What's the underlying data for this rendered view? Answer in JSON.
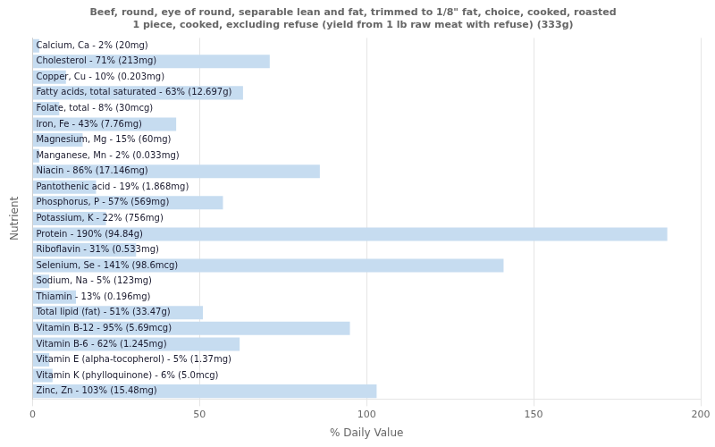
{
  "chart_data": {
    "type": "bar",
    "orientation": "horizontal",
    "title": "Beef, round, eye of round, separable lean and fat, trimmed to 1/8\" fat, choice, cooked, roasted\n1 piece, cooked, excluding refuse (yield from 1 lb raw meat with refuse) (333g)",
    "x_label": "% Daily Value",
    "y_label": "Nutrient",
    "categories": [
      "Calcium, Ca - 2% (20mg)",
      "Cholesterol - 71% (213mg)",
      "Copper, Cu - 10% (0.203mg)",
      "Fatty acids, total saturated - 63% (12.697g)",
      "Folate, total - 8% (30mcg)",
      "Iron, Fe - 43% (7.76mg)",
      "Magnesium, Mg - 15% (60mg)",
      "Manganese, Mn - 2% (0.033mg)",
      "Niacin - 86% (17.146mg)",
      "Pantothenic acid - 19% (1.868mg)",
      "Phosphorus, P - 57% (569mg)",
      "Potassium, K - 22% (756mg)",
      "Protein - 190% (94.84g)",
      "Riboflavin - 31% (0.533mg)",
      "Selenium, Se - 141% (98.6mcg)",
      "Sodium, Na - 5% (123mg)",
      "Thiamin - 13% (0.196mg)",
      "Total lipid (fat) - 51% (33.47g)",
      "Vitamin B-12 - 95% (5.69mcg)",
      "Vitamin B-6 - 62% (1.245mg)",
      "Vitamin E (alpha-tocopherol) - 5% (1.37mg)",
      "Vitamin K (phylloquinone) - 6% (5.0mcg)",
      "Zinc, Zn - 103% (15.48mg)"
    ],
    "values": [
      2,
      71,
      10,
      63,
      8,
      43,
      15,
      2,
      86,
      19,
      57,
      22,
      190,
      31,
      141,
      5,
      13,
      51,
      95,
      62,
      5,
      6,
      103
    ],
    "color": "#c6dcf0",
    "xlim": [
      0,
      200
    ],
    "xticks": [
      0,
      50,
      100,
      150,
      200
    ],
    "grid": true,
    "tick_labels": "x"
  }
}
